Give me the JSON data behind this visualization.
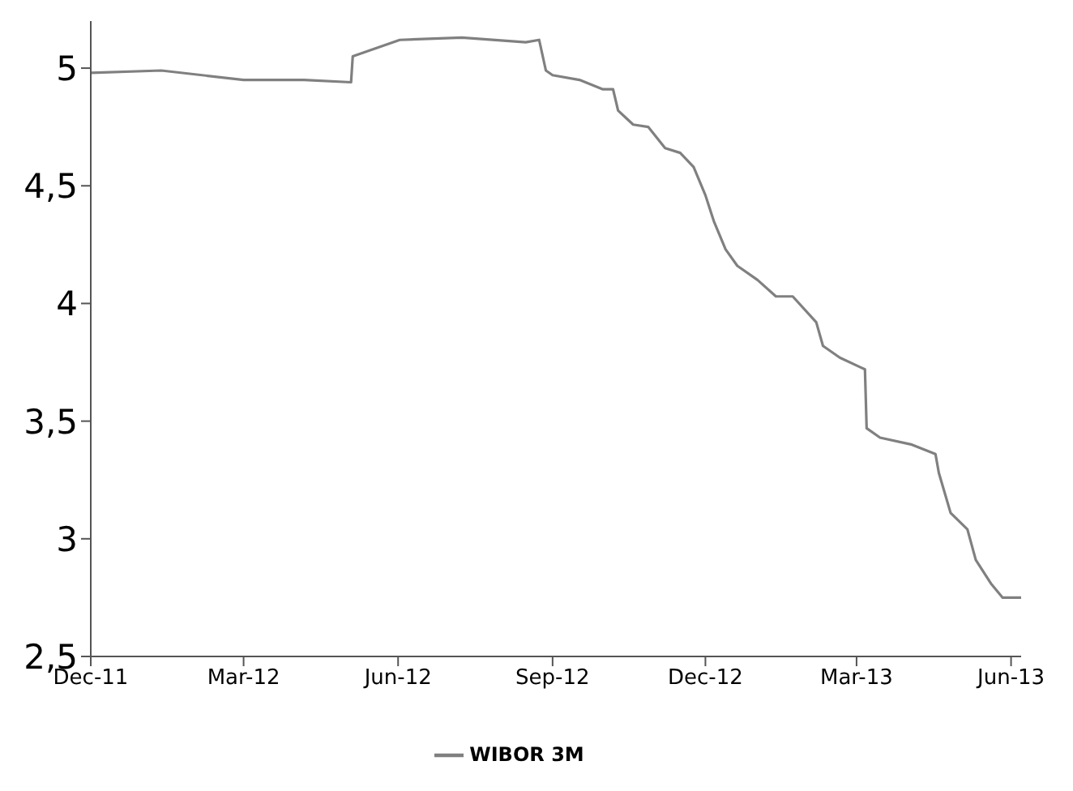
{
  "chart_data": {
    "type": "line",
    "x": [
      "2011-12-01",
      "2012-01-12",
      "2012-03-01",
      "2012-04-06",
      "2012-05-04",
      "2012-05-05",
      "2012-06-02",
      "2012-07-09",
      "2012-08-16",
      "2012-08-24",
      "2012-08-28",
      "2012-09-01",
      "2012-09-17",
      "2012-10-01",
      "2012-10-07",
      "2012-10-10",
      "2012-10-19",
      "2012-10-28",
      "2012-11-07",
      "2012-11-16",
      "2012-11-24",
      "2012-12-01",
      "2012-12-06",
      "2012-12-13",
      "2012-12-20",
      "2013-01-01",
      "2013-01-12",
      "2013-01-22",
      "2013-02-05",
      "2013-02-09",
      "2013-02-19",
      "2013-03-03",
      "2013-03-06",
      "2013-03-07",
      "2013-03-15",
      "2013-04-03",
      "2013-04-17",
      "2013-04-19",
      "2013-04-26",
      "2013-05-06",
      "2013-05-11",
      "2013-05-20",
      "2013-05-27",
      "2013-06-07"
    ],
    "series": [
      {
        "name": "WIBOR 3M",
        "color": "#808080",
        "values": [
          4.98,
          4.99,
          4.95,
          4.95,
          4.94,
          5.05,
          5.12,
          5.13,
          5.11,
          5.12,
          4.99,
          4.97,
          4.95,
          4.91,
          4.91,
          4.82,
          4.76,
          4.75,
          4.66,
          4.64,
          4.58,
          4.46,
          4.35,
          4.23,
          4.16,
          4.1,
          4.03,
          4.03,
          3.92,
          3.82,
          3.77,
          3.73,
          3.72,
          3.47,
          3.43,
          3.4,
          3.36,
          3.28,
          3.11,
          3.04,
          2.91,
          2.81,
          2.75,
          2.75
        ]
      }
    ],
    "xlim": [
      "2011-12-01",
      "2013-06-07"
    ],
    "xticks": [
      {
        "value": "2011-12-01",
        "label": "Dec-11"
      },
      {
        "value": "2012-03-01",
        "label": "Mar-12"
      },
      {
        "value": "2012-06-01",
        "label": "Jun-12"
      },
      {
        "value": "2012-09-01",
        "label": "Sep-12"
      },
      {
        "value": "2012-12-01",
        "label": "Dec-12"
      },
      {
        "value": "2013-03-01",
        "label": "Mar-13"
      },
      {
        "value": "2013-06-01",
        "label": "Jun-13"
      }
    ],
    "ylim": [
      2.5,
      5.2
    ],
    "yticks": [
      {
        "value": 2.5,
        "label": "2,5"
      },
      {
        "value": 3,
        "label": "3"
      },
      {
        "value": 3.5,
        "label": "3,5"
      },
      {
        "value": 4,
        "label": "4"
      },
      {
        "value": 4.5,
        "label": "4,5"
      },
      {
        "value": 5,
        "label": "5"
      }
    ],
    "grid": false,
    "legend": "bottom",
    "marker": "none",
    "line_style": "solid"
  }
}
